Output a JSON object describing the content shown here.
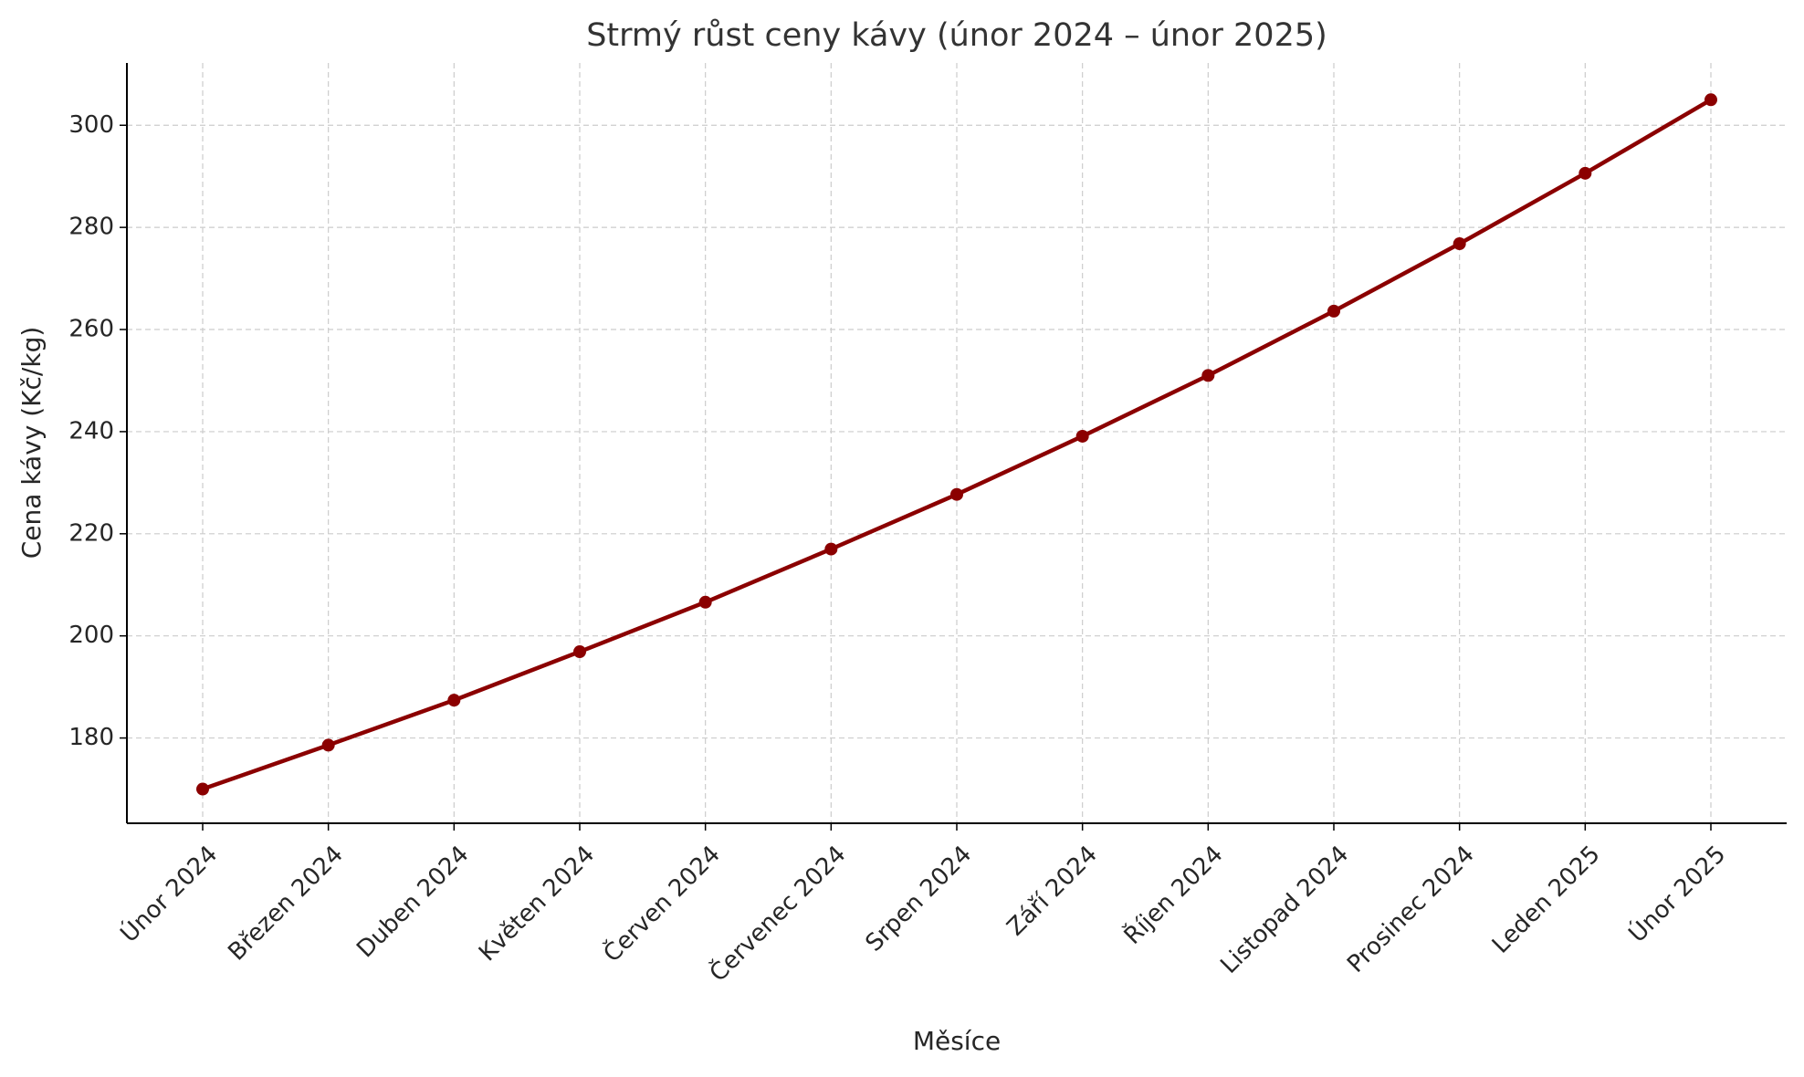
{
  "chart_data": {
    "type": "line",
    "title": "Strmý růst ceny kávy (únor 2024 – únor 2025)",
    "x_label": "Měsíce",
    "y_label": "Cena kávy (Kč/kg)",
    "categories": [
      "Únor 2024",
      "Březen 2024",
      "Duben 2024",
      "Květen 2024",
      "Červen 2024",
      "Červenec 2024",
      "Srpen 2024",
      "Září 2024",
      "Říjen 2024",
      "Listopad 2024",
      "Prosinec 2024",
      "Leden 2025",
      "Únor 2025"
    ],
    "values": [
      170,
      178.6,
      187.4,
      196.9,
      206.6,
      217,
      227.7,
      239.1,
      251,
      263.6,
      276.8,
      290.6,
      305
    ],
    "color": "#8b0000",
    "ylim": [
      163.3,
      312.2
    ],
    "yticks": [
      180,
      200,
      220,
      240,
      260,
      280,
      300
    ],
    "grid": true
  }
}
